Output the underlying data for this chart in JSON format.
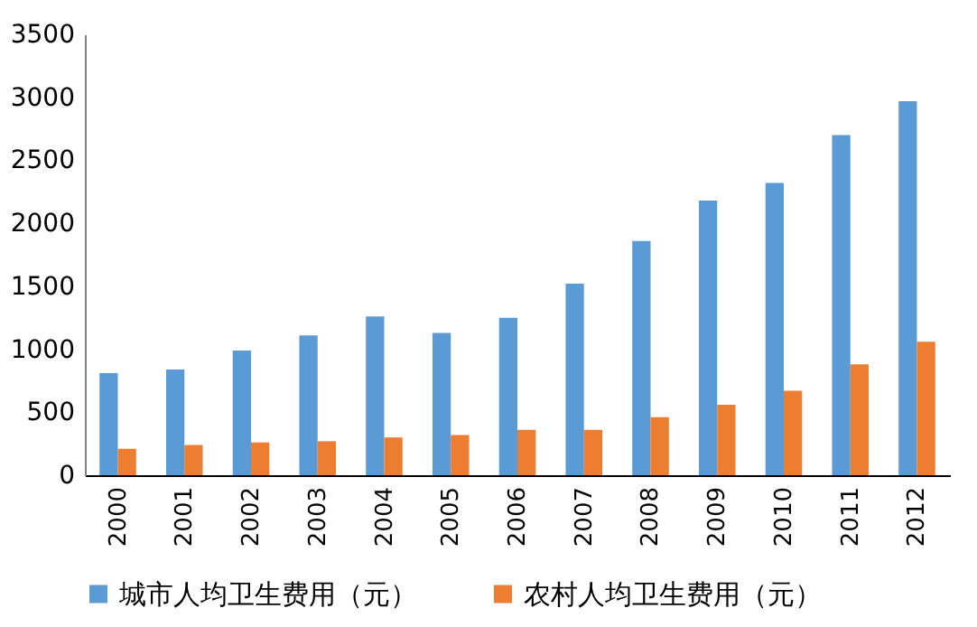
{
  "chart_data": {
    "type": "bar",
    "categories": [
      "2000",
      "2001",
      "2002",
      "2003",
      "2004",
      "2005",
      "2006",
      "2007",
      "2008",
      "2009",
      "2010",
      "2011",
      "2012"
    ],
    "series": [
      {
        "name": "城市人均卫生费用（元）",
        "color": "#5b9bd5",
        "values": [
          810,
          840,
          990,
          1110,
          1260,
          1130,
          1250,
          1520,
          1860,
          2180,
          2320,
          2700,
          2970
        ]
      },
      {
        "name": "农村人均卫生费用（元）",
        "color": "#ed7d31",
        "values": [
          210,
          240,
          260,
          270,
          300,
          320,
          360,
          360,
          460,
          560,
          670,
          880,
          1060
        ]
      }
    ],
    "ylim": [
      0,
      3500
    ],
    "yticks": [
      0,
      500,
      1000,
      1500,
      2000,
      2500,
      3000,
      3500
    ],
    "grid": false,
    "legend": "bottom"
  }
}
